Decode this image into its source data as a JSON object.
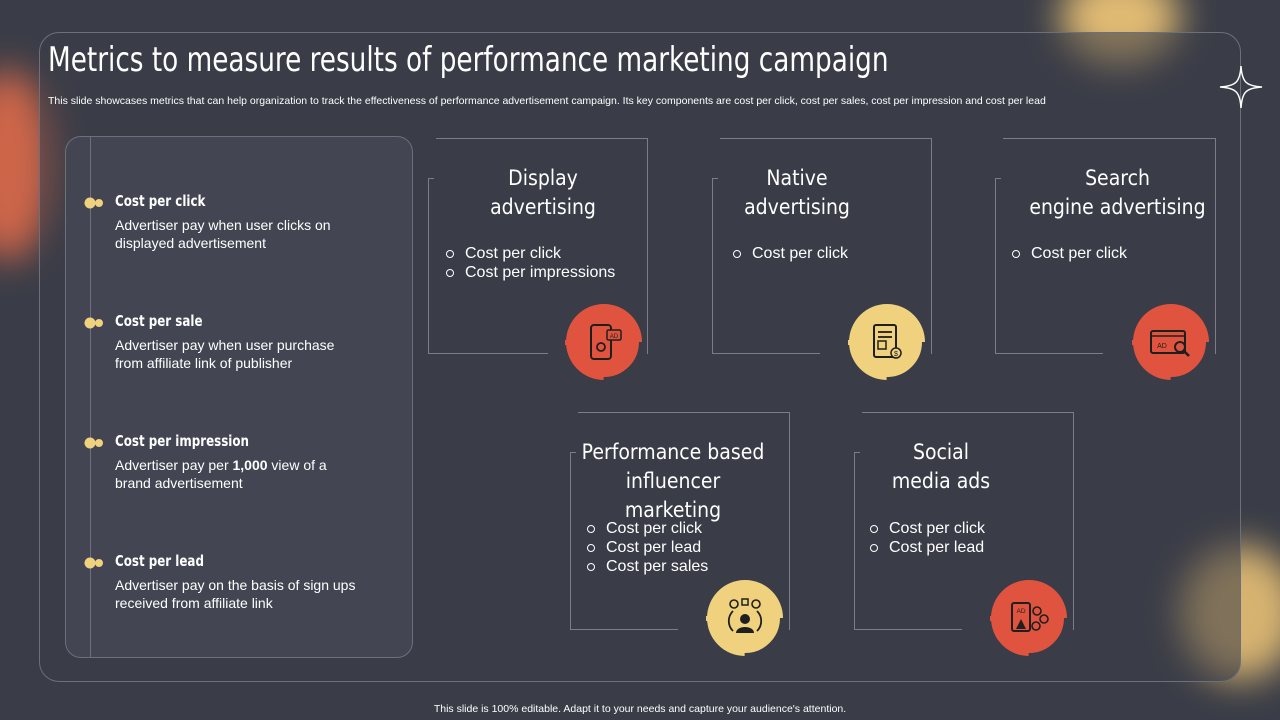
{
  "slide": {
    "title": "Metrics to measure results of performance marketing campaign",
    "subtitle": "This slide showcases metrics that can help organization to track the effectiveness of performance advertisement campaign. Its key components are cost per click, cost per sales, cost per impression and cost per lead",
    "footer": "This slide is 100% editable. Adapt it to your needs and capture your audience's attention."
  },
  "metrics": [
    {
      "title": "Cost per click",
      "desc": "Advertiser pay when user clicks on displayed advertisement"
    },
    {
      "title": "Cost per sale",
      "desc": "Advertiser pay when user purchase from affiliate link of publisher"
    },
    {
      "title": "Cost per impression",
      "desc_before": "Advertiser pay per ",
      "desc_bold": "1,000",
      "desc_after": " view of a brand advertisement"
    },
    {
      "title": "Cost per lead",
      "desc": "Advertiser pay on the basis of sign ups received from affiliate link"
    }
  ],
  "cards": [
    {
      "title_lines": [
        "Display",
        "advertising"
      ],
      "items": [
        "Cost per click",
        "Cost per impressions"
      ],
      "icon": "mobile-ad-icon",
      "accent": "#e0543f"
    },
    {
      "title_lines": [
        "Native",
        "advertising"
      ],
      "items": [
        "Cost per click"
      ],
      "icon": "tablet-ad-icon",
      "accent": "#f0d27e"
    },
    {
      "title_lines": [
        "Search",
        "engine advertising"
      ],
      "items": [
        "Cost per click"
      ],
      "icon": "search-ad-icon",
      "accent": "#e0543f"
    },
    {
      "title_lines": [
        "Performance based",
        "influencer marketing"
      ],
      "items": [
        "Cost per click",
        "Cost per lead",
        "Cost per sales"
      ],
      "icon": "influencer-icon",
      "accent": "#f0d27e"
    },
    {
      "title_lines": [
        "Social",
        "media ads"
      ],
      "items": [
        "Cost per click",
        "Cost per lead"
      ],
      "icon": "social-ad-icon",
      "accent": "#e0543f"
    }
  ],
  "colors": {
    "background": "#3a3d47",
    "panel": "#434652",
    "red": "#e0543f",
    "yellow": "#f0d27e",
    "border": "#7a7e89"
  }
}
